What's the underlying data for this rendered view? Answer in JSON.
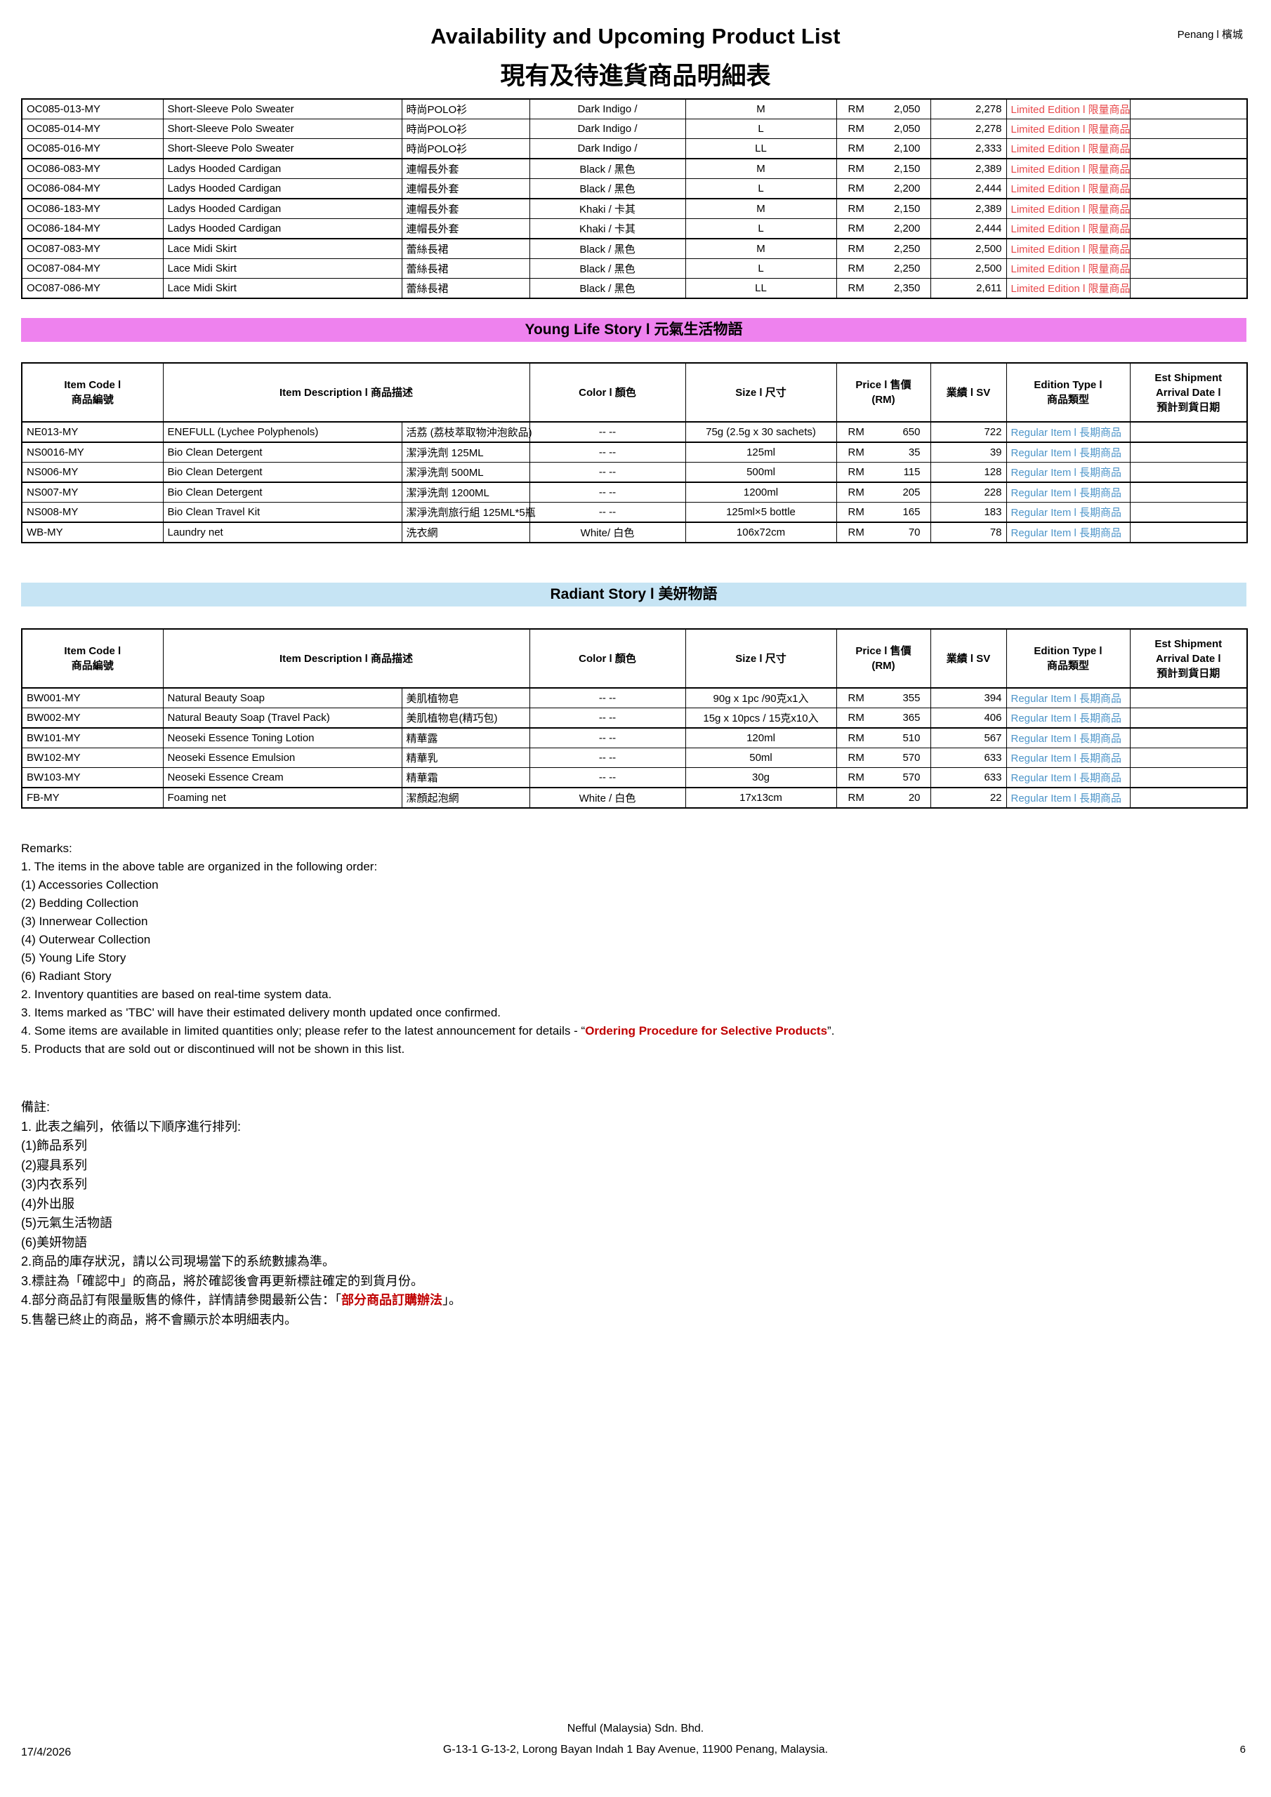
{
  "header": {
    "title_en": "Availability and Upcoming Product List",
    "title_zh": "現有及待進貨商品明細表",
    "region": "Penang l 檳城"
  },
  "colors": {
    "limited": "#E8494B",
    "regular": "#4E95C9",
    "banner_young": "#EE82EE",
    "banner_radiant": "#C6E4F4",
    "remark_red": "#C00000"
  },
  "table_header": {
    "item_code": "Item Code l\n商品編號",
    "item_desc": "Item Description l 商品描述",
    "color": "Color l 顏色",
    "size": "Size l 尺寸",
    "price": "Price l 售價\n(RM)",
    "sv": "業績 l SV",
    "edition": "Edition Type l\n商品類型",
    "est": "Est Shipment\nArrival Date l\n預計到貨日期"
  },
  "continuation_table": {
    "rows": [
      {
        "code": "OC085-013-MY",
        "desc_en": "Short-Sleeve Polo Sweater",
        "desc_zh": "時尚POLO衫",
        "color": "Dark Indigo /",
        "size": "M",
        "currency": "RM",
        "price": "2,050",
        "sv": "2,278",
        "edition": "Limited Edition l 限量商品",
        "edition_type": "limited"
      },
      {
        "code": "OC085-014-MY",
        "desc_en": "Short-Sleeve Polo Sweater",
        "desc_zh": "時尚POLO衫",
        "color": "Dark Indigo /",
        "size": "L",
        "currency": "RM",
        "price": "2,050",
        "sv": "2,278",
        "edition": "Limited Edition l 限量商品",
        "edition_type": "limited"
      },
      {
        "code": "OC085-016-MY",
        "desc_en": "Short-Sleeve Polo Sweater",
        "desc_zh": "時尚POLO衫",
        "color": "Dark Indigo /",
        "size": "LL",
        "currency": "RM",
        "price": "2,100",
        "sv": "2,333",
        "edition": "Limited Edition l 限量商品",
        "edition_type": "limited",
        "group_end": true
      },
      {
        "code": "OC086-083-MY",
        "desc_en": "Ladys Hooded Cardigan",
        "desc_zh": "連帽長外套",
        "color": "Black / 黑色",
        "size": "M",
        "currency": "RM",
        "price": "2,150",
        "sv": "2,389",
        "edition": "Limited Edition l 限量商品",
        "edition_type": "limited"
      },
      {
        "code": "OC086-084-MY",
        "desc_en": "Ladys Hooded Cardigan",
        "desc_zh": "連帽長外套",
        "color": "Black / 黑色",
        "size": "L",
        "currency": "RM",
        "price": "2,200",
        "sv": "2,444",
        "edition": "Limited Edition l 限量商品",
        "edition_type": "limited",
        "group_end": true
      },
      {
        "code": "OC086-183-MY",
        "desc_en": "Ladys Hooded Cardigan",
        "desc_zh": "連帽長外套",
        "color": "Khaki / 卡其",
        "size": "M",
        "currency": "RM",
        "price": "2,150",
        "sv": "2,389",
        "edition": "Limited Edition l 限量商品",
        "edition_type": "limited"
      },
      {
        "code": "OC086-184-MY",
        "desc_en": "Ladys Hooded Cardigan",
        "desc_zh": "連帽長外套",
        "color": "Khaki / 卡其",
        "size": "L",
        "currency": "RM",
        "price": "2,200",
        "sv": "2,444",
        "edition": "Limited Edition l 限量商品",
        "edition_type": "limited",
        "group_end": true
      },
      {
        "code": "OC087-083-MY",
        "desc_en": "Lace Midi Skirt",
        "desc_zh": "蕾絲長裙",
        "color": "Black / 黑色",
        "size": "M",
        "currency": "RM",
        "price": "2,250",
        "sv": "2,500",
        "edition": "Limited Edition l 限量商品",
        "edition_type": "limited"
      },
      {
        "code": "OC087-084-MY",
        "desc_en": "Lace Midi Skirt",
        "desc_zh": "蕾絲長裙",
        "color": "Black / 黑色",
        "size": "L",
        "currency": "RM",
        "price": "2,250",
        "sv": "2,500",
        "edition": "Limited Edition l 限量商品",
        "edition_type": "limited"
      },
      {
        "code": "OC087-086-MY",
        "desc_en": "Lace Midi Skirt",
        "desc_zh": "蕾絲長裙",
        "color": "Black / 黑色",
        "size": "LL",
        "currency": "RM",
        "price": "2,350",
        "sv": "2,611",
        "edition": "Limited Edition l 限量商品",
        "edition_type": "limited"
      }
    ]
  },
  "sections": [
    {
      "banner": "Young Life Story l 元氣生活物語",
      "rows": [
        {
          "code": "NE013-MY",
          "desc_en": "ENEFULL (Lychee Polyphenols)",
          "desc_zh": "活荔 (荔枝萃取物沖泡飲品)",
          "small_zh": true,
          "color": "-- --",
          "size": "75g (2.5g x 30 sachets)",
          "currency": "RM",
          "price": "650",
          "sv": "722",
          "edition": "Regular Item l 長期商品",
          "edition_type": "regular",
          "group_end": true
        },
        {
          "code": "NS0016-MY",
          "desc_en": "Bio Clean Detergent",
          "desc_zh": "潔淨洗劑 125ML",
          "color": "-- --",
          "size": "125ml",
          "currency": "RM",
          "price": "35",
          "sv": "39",
          "edition": "Regular Item l 長期商品",
          "edition_type": "regular"
        },
        {
          "code": "NS006-MY",
          "desc_en": "Bio Clean Detergent",
          "desc_zh": "潔淨洗劑 500ML",
          "color": "-- --",
          "size": "500ml",
          "currency": "RM",
          "price": "115",
          "sv": "128",
          "edition": "Regular Item l 長期商品",
          "edition_type": "regular",
          "group_end": true
        },
        {
          "code": "NS007-MY",
          "desc_en": "Bio Clean Detergent",
          "desc_zh": "潔淨洗劑 1200ML",
          "color": "-- --",
          "size": "1200ml",
          "currency": "RM",
          "price": "205",
          "sv": "228",
          "edition": "Regular Item l 長期商品",
          "edition_type": "regular"
        },
        {
          "code": "NS008-MY",
          "desc_en": "Bio Clean Travel Kit",
          "desc_zh": "潔淨洗劑旅行組 125ML*5瓶",
          "small_zh": true,
          "color": "-- --",
          "size": "125ml×5 bottle",
          "currency": "RM",
          "price": "165",
          "sv": "183",
          "edition": "Regular Item l 長期商品",
          "edition_type": "regular",
          "group_end": true
        },
        {
          "code": "WB-MY",
          "desc_en": "Laundry net",
          "desc_zh": "洗衣網",
          "color": "White/ 白色",
          "size": "106x72cm",
          "currency": "RM",
          "price": "70",
          "sv": "78",
          "edition": "Regular Item l 長期商品",
          "edition_type": "regular"
        }
      ]
    },
    {
      "banner": "Radiant Story l 美妍物語",
      "rows": [
        {
          "code": "BW001-MY",
          "desc_en": "Natural Beauty Soap",
          "desc_zh": "美肌植物皂",
          "color": "-- --",
          "size": "90g x 1pc /90克x1入",
          "currency": "RM",
          "price": "355",
          "sv": "394",
          "edition": "Regular Item l 長期商品",
          "edition_type": "regular"
        },
        {
          "code": "BW002-MY",
          "desc_en": "Natural Beauty Soap (Travel Pack)",
          "desc_zh": "美肌植物皂(精巧包)",
          "color": "-- --",
          "size": "15g x 10pcs / 15克x10入",
          "currency": "RM",
          "price": "365",
          "sv": "406",
          "edition": "Regular Item l 長期商品",
          "edition_type": "regular",
          "group_end": true
        },
        {
          "code": "BW101-MY",
          "desc_en": "Neoseki Essence Toning Lotion",
          "desc_zh": "精華露",
          "color": "-- --",
          "size": "120ml",
          "currency": "RM",
          "price": "510",
          "sv": "567",
          "edition": "Regular Item l 長期商品",
          "edition_type": "regular"
        },
        {
          "code": "BW102-MY",
          "desc_en": "Neoseki Essence Emulsion",
          "desc_zh": "精華乳",
          "color": "-- --",
          "size": "50ml",
          "currency": "RM",
          "price": "570",
          "sv": "633",
          "edition": "Regular Item l 長期商品",
          "edition_type": "regular"
        },
        {
          "code": "BW103-MY",
          "desc_en": "Neoseki Essence Cream",
          "desc_zh": "精華霜",
          "color": "-- --",
          "size": "30g",
          "currency": "RM",
          "price": "570",
          "sv": "633",
          "edition": "Regular Item l 長期商品",
          "edition_type": "regular",
          "group_end": true
        },
        {
          "code": "FB-MY",
          "desc_en": "Foaming net",
          "desc_zh": "潔顏起泡網",
          "color": "White / 白色",
          "size": "17x13cm",
          "currency": "RM",
          "price": "20",
          "sv": "22",
          "edition": "Regular Item l 長期商品",
          "edition_type": "regular"
        }
      ]
    }
  ],
  "remarks_en": {
    "l1": "Remarks:",
    "l2": "1. The items in the above table are organized in the following order:",
    "l3": "(1) Accessories Collection",
    "l4": "(2) Bedding Collection",
    "l5": "(3) Innerwear Collection",
    "l6": "(4) Outerwear Collection",
    "l7": "(5) Young Life Story",
    "l8": "(6) Radiant Story",
    "l9": "2. Inventory quantities are based on real-time system data.",
    "l10": "3. Items marked as 'TBC' will have their estimated delivery month updated once confirmed.",
    "l11_prefix": "4. Some items are available in limited quantities only; please refer to the latest announcement for details - “",
    "l11_red": "Ordering Procedure for Selective Products",
    "l11_suffix": "”.",
    "l12": "5. Products that are sold out or discontinued will not be shown in this list."
  },
  "remarks_zh": {
    "l1": "備註:",
    "l2": "1. 此表之編列，依循以下順序進行排列:",
    "l3": "(1)飾品系列",
    "l4": "(2)寢具系列",
    "l5": "(3)内衣系列",
    "l6": "(4)外出服",
    "l7": "(5)元氣生活物語",
    "l8": "(6)美妍物語",
    "l9": "2.商品的庫存狀況，請以公司現場當下的系統數據為準。",
    "l10": "3.標註為「確認中」的商品，將於確認後會再更新標註確定的到貨月份。",
    "l11_prefix": "4.部分商品訂有限量販售的條件，詳情請參閱最新公告：「",
    "l11_red": "部分商品訂購辦法",
    "l11_suffix": "」。",
    "l12": "5.售罄已終止的商品，將不會顯示於本明細表内。"
  },
  "footer": {
    "date": "17/4/2026",
    "company": "Nefful (Malaysia) Sdn. Bhd.",
    "address": "G-13-1 G-13-2, Lorong Bayan Indah 1 Bay Avenue, 11900 Penang, Malaysia.",
    "page": "6"
  }
}
